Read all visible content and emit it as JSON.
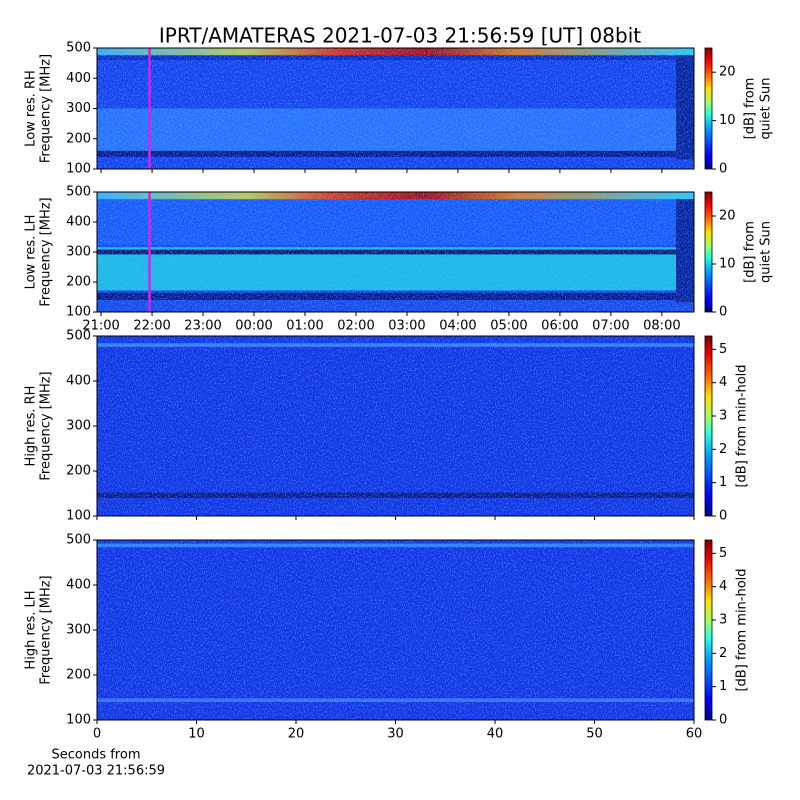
{
  "figure_title": "IPRT/AMATERAS 2021-07-03 21:56:59 [UT]   08bit",
  "chart_data": [
    {
      "type": "heatmap",
      "ylabel": [
        "Low res. RH",
        "Frequency [MHz]"
      ],
      "ylim": [
        100,
        500
      ],
      "yticks": [
        100,
        200,
        300,
        400,
        500
      ],
      "xlim": [
        20.92,
        32.63
      ],
      "xticks": [
        21,
        22,
        23,
        24,
        25,
        26,
        27,
        28,
        29,
        30,
        31,
        32
      ],
      "marker_x": 21.95,
      "marker_color": "#e020e0",
      "colorbar": {
        "label": [
          "[dB] from",
          "quiet Sun"
        ],
        "lim": [
          0,
          25
        ],
        "ticks": [
          0,
          10,
          20
        ]
      }
    },
    {
      "type": "heatmap",
      "ylabel": [
        "Low res. LH",
        "Frequency [MHz]"
      ],
      "ylim": [
        100,
        500
      ],
      "yticks": [
        100,
        200,
        300,
        400,
        500
      ],
      "xlim": [
        20.92,
        32.63
      ],
      "xticks": [
        {
          "value": 21,
          "label": "21:00"
        },
        {
          "value": 22,
          "label": "22:00"
        },
        {
          "value": 23,
          "label": "23:00"
        },
        {
          "value": 24,
          "label": "00:00"
        },
        {
          "value": 25,
          "label": "01:00"
        },
        {
          "value": 26,
          "label": "02:00"
        },
        {
          "value": 27,
          "label": "03:00"
        },
        {
          "value": 28,
          "label": "04:00"
        },
        {
          "value": 29,
          "label": "05:00"
        },
        {
          "value": 30,
          "label": "06:00"
        },
        {
          "value": 31,
          "label": "07:00"
        },
        {
          "value": 32,
          "label": "08:00"
        }
      ],
      "marker_x": 21.95,
      "marker_color": "#e020e0",
      "colorbar": {
        "label": [
          "[dB] from",
          "quiet Sun"
        ],
        "lim": [
          0,
          25
        ],
        "ticks": [
          0,
          10,
          20
        ]
      }
    },
    {
      "type": "heatmap",
      "ylabel": [
        "High res. RH",
        "Frequency [MHz]"
      ],
      "ylim": [
        100,
        500
      ],
      "yticks": [
        100,
        200,
        300,
        400,
        500
      ],
      "xlim": [
        0,
        60
      ],
      "xticks": [
        0,
        10,
        20,
        30,
        40,
        50,
        60
      ],
      "colorbar": {
        "label": [
          "[dB] from min-hold"
        ],
        "lim": [
          0,
          5.4
        ],
        "ticks": [
          0,
          1,
          2,
          3,
          4,
          5
        ]
      }
    },
    {
      "type": "heatmap",
      "ylabel": [
        "High res. LH",
        "Frequency [MHz]"
      ],
      "ylim": [
        100,
        500
      ],
      "yticks": [
        100,
        200,
        300,
        400,
        500
      ],
      "xlim": [
        0,
        60
      ],
      "xticks": [
        0,
        10,
        20,
        30,
        40,
        50,
        60
      ],
      "show_xtick_labels": true,
      "xlabel": [
        "Seconds from",
        "2021-07-03 21:56:59"
      ],
      "colorbar": {
        "label": [
          "[dB] from min-hold"
        ],
        "lim": [
          0,
          5.4
        ],
        "ticks": [
          0,
          1,
          2,
          3,
          4,
          5
        ]
      }
    }
  ]
}
